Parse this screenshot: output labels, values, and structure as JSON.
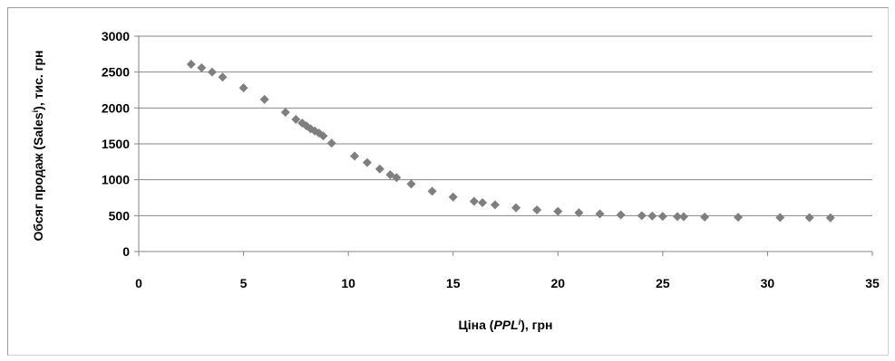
{
  "chart_data": {
    "type": "scatter",
    "title": "",
    "xlabel": "Ціна (PPLⁱ), грн",
    "xlabel_parts": [
      {
        "text": "Ціна (",
        "italic": false,
        "sup": false
      },
      {
        "text": "PPL",
        "italic": true,
        "sup": false
      },
      {
        "text": "i",
        "italic": true,
        "sup": true
      },
      {
        "text": "), грн",
        "italic": false,
        "sup": false
      }
    ],
    "ylabel": "Обсяг продаж (Salesⁱ), тис. грн",
    "ylabel_parts": [
      {
        "text": "Обсяг продаж (Sales",
        "sup": false
      },
      {
        "text": "i",
        "sup": true
      },
      {
        "text": "), тис. грн",
        "sup": false
      }
    ],
    "xlim": [
      0,
      35
    ],
    "ylim": [
      0,
      3000
    ],
    "x_ticks": [
      "0",
      "5",
      "10",
      "15",
      "20",
      "25",
      "30",
      "35"
    ],
    "y_ticks": [
      "0",
      "500",
      "1000",
      "1500",
      "2000",
      "2500",
      "3000"
    ],
    "grid": "horizontal",
    "marker_color": "#7f7f7f",
    "series": [
      {
        "points": [
          [
            2.5,
            2610
          ],
          [
            3.0,
            2560
          ],
          [
            3.5,
            2500
          ],
          [
            4.0,
            2430
          ],
          [
            5.0,
            2280
          ],
          [
            6.0,
            2120
          ],
          [
            7.0,
            1940
          ],
          [
            7.5,
            1840
          ],
          [
            7.8,
            1790
          ],
          [
            8.0,
            1750
          ],
          [
            8.2,
            1710
          ],
          [
            8.4,
            1680
          ],
          [
            8.6,
            1650
          ],
          [
            8.8,
            1610
          ],
          [
            9.2,
            1510
          ],
          [
            10.3,
            1330
          ],
          [
            10.9,
            1240
          ],
          [
            11.5,
            1150
          ],
          [
            12.0,
            1070
          ],
          [
            12.3,
            1030
          ],
          [
            13.0,
            940
          ],
          [
            14.0,
            840
          ],
          [
            15.0,
            760
          ],
          [
            16.0,
            700
          ],
          [
            16.4,
            680
          ],
          [
            17.0,
            650
          ],
          [
            18.0,
            610
          ],
          [
            19.0,
            580
          ],
          [
            20.0,
            560
          ],
          [
            21.0,
            540
          ],
          [
            22.0,
            525
          ],
          [
            23.0,
            510
          ],
          [
            24.0,
            500
          ],
          [
            24.5,
            495
          ],
          [
            25.0,
            490
          ],
          [
            25.7,
            487
          ],
          [
            26.0,
            485
          ],
          [
            27.0,
            480
          ],
          [
            28.6,
            478
          ],
          [
            30.6,
            475
          ],
          [
            32.0,
            472
          ],
          [
            33.0,
            470
          ]
        ]
      }
    ]
  }
}
